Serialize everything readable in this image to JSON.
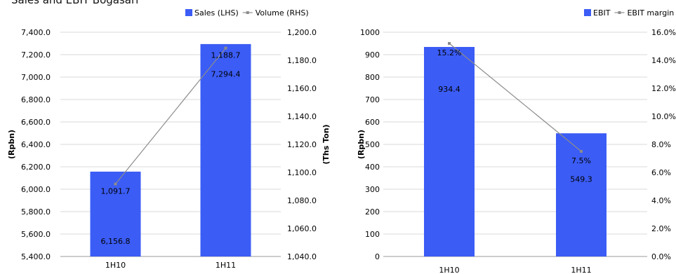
{
  "page": {
    "title": "Sales and EBIT Bogasari"
  },
  "chart_data": [
    {
      "type": "bar+line",
      "categories": [
        "1H10",
        "1H11"
      ],
      "series": [
        {
          "name": "Sales (LHS)",
          "type": "bar",
          "axis": "left",
          "values": [
            6156.8,
            7294.4
          ],
          "labels": [
            "6,156.8",
            "7,294.4"
          ],
          "color": "#3b5cf5"
        },
        {
          "name": "Volume (RHS)",
          "type": "line",
          "axis": "right",
          "values": [
            1091.7,
            1188.7
          ],
          "labels": [
            "1,091.7",
            "1,188.7"
          ],
          "color": "#8c8c8c"
        }
      ],
      "ylabel": "(Rpbn)",
      "y2label": "(Ths Ton)",
      "ylim": [
        5400,
        7400
      ],
      "y2lim": [
        1040,
        1200
      ],
      "yticks": [
        "5,400.0",
        "5,600.0",
        "5,800.0",
        "6,000.0",
        "6,200.0",
        "6,400.0",
        "6,600.0",
        "6,800.0",
        "7,000.0",
        "7,200.0",
        "7,400.0"
      ],
      "y2ticks": [
        "1,040.0",
        "1,060.0",
        "1,080.0",
        "1,100.0",
        "1,120.0",
        "1,140.0",
        "1,160.0",
        "1,180.0",
        "1,200.0"
      ],
      "grid": true,
      "legend": "top-right"
    },
    {
      "type": "bar+line",
      "categories": [
        "1H10",
        "1H11"
      ],
      "series": [
        {
          "name": "EBIT",
          "type": "bar",
          "axis": "left",
          "values": [
            934.4,
            549.3
          ],
          "labels": [
            "934.4",
            "549.3"
          ],
          "color": "#3b5cf5"
        },
        {
          "name": "EBIT margin",
          "type": "line",
          "axis": "right",
          "values": [
            15.2,
            7.5
          ],
          "labels": [
            "15.2%",
            "7.5%"
          ],
          "color": "#8c8c8c"
        }
      ],
      "ylabel": "(Rpbn)",
      "ylim": [
        0,
        1000
      ],
      "y2lim": [
        0,
        16
      ],
      "yticks": [
        "0",
        "100",
        "200",
        "300",
        "400",
        "500",
        "600",
        "700",
        "800",
        "900",
        "1000"
      ],
      "y2ticks": [
        "0.0%",
        "2.0%",
        "4.0%",
        "6.0%",
        "8.0%",
        "10.0%",
        "12.0%",
        "14.0%",
        "16.0%"
      ],
      "grid": true,
      "legend": "top-right"
    }
  ]
}
